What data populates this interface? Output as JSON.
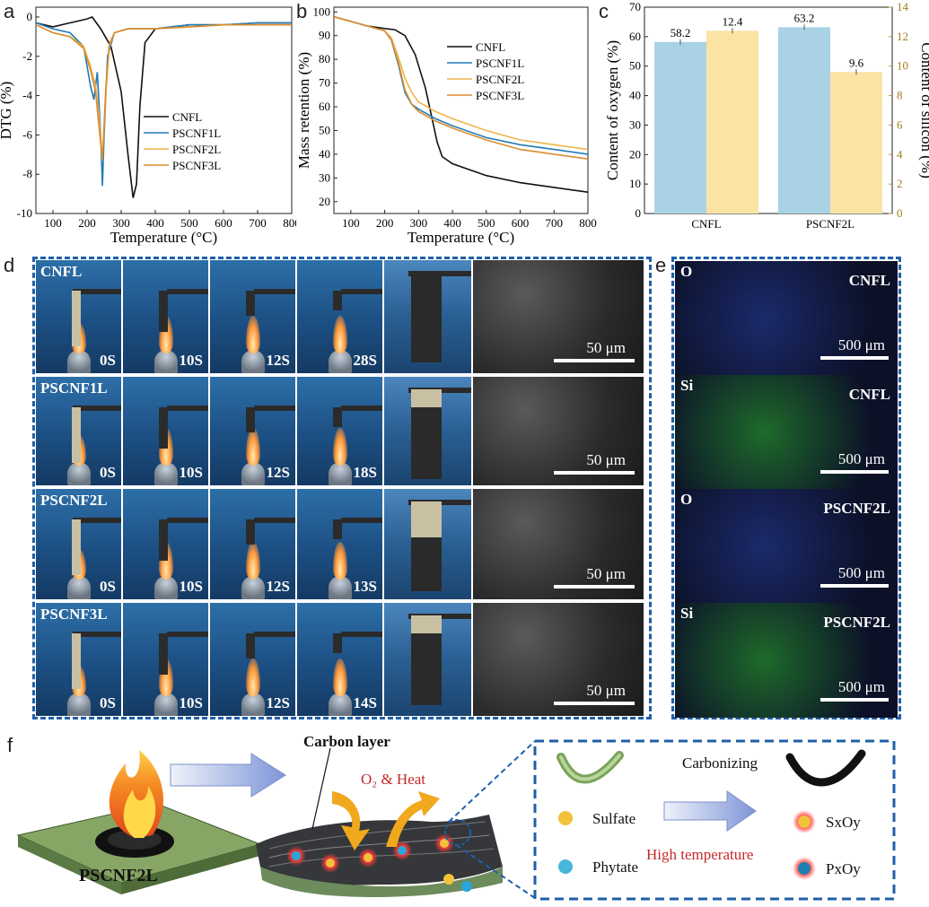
{
  "panel_labels": {
    "a": "a",
    "b": "b",
    "c": "c",
    "d": "d",
    "e": "e",
    "f": "f"
  },
  "chart_data": [
    {
      "type": "line",
      "panel": "a",
      "xlabel": "Temperature (°C)",
      "ylabel": "DTG (%)",
      "xlim": [
        50,
        800
      ],
      "ylim": [
        -10,
        0.5
      ],
      "xticks": [
        100,
        200,
        300,
        400,
        500,
        600,
        700,
        800
      ],
      "yticks": [
        0,
        -2,
        -4,
        -6,
        -8,
        -10
      ],
      "legend": [
        "CNFL",
        "PSCNF1L",
        "PSCNF2L",
        "PSCNF3L"
      ],
      "series": [
        {
          "name": "CNFL",
          "color": "#111111",
          "x": [
            50,
            100,
            150,
            200,
            215,
            240,
            270,
            300,
            320,
            335,
            345,
            355,
            370,
            400,
            500,
            600,
            700,
            800
          ],
          "y": [
            -0.3,
            -0.5,
            -0.3,
            -0.1,
            0.0,
            -0.6,
            -1.5,
            -3.8,
            -7.0,
            -9.2,
            -8.5,
            -4.5,
            -1.3,
            -0.6,
            -0.4,
            -0.4,
            -0.3,
            -0.3
          ]
        },
        {
          "name": "PSCNF1L",
          "color": "#1f7bb8",
          "x": [
            50,
            100,
            150,
            190,
            210,
            220,
            230,
            240,
            245,
            250,
            260,
            280,
            320,
            400,
            500,
            600,
            700,
            800
          ],
          "y": [
            -0.3,
            -0.6,
            -0.8,
            -1.5,
            -3.5,
            -4.2,
            -2.8,
            -6.0,
            -8.6,
            -6.0,
            -2.0,
            -0.8,
            -0.6,
            -0.6,
            -0.4,
            -0.4,
            -0.3,
            -0.3
          ]
        },
        {
          "name": "PSCNF2L",
          "color": "#f0b44a",
          "x": [
            50,
            100,
            150,
            190,
            210,
            225,
            235,
            245,
            255,
            265,
            280,
            320,
            400,
            500,
            600,
            700,
            800
          ],
          "y": [
            -0.4,
            -0.8,
            -1.0,
            -1.5,
            -2.5,
            -3.5,
            -5.0,
            -7.2,
            -4.0,
            -1.5,
            -0.8,
            -0.6,
            -0.6,
            -0.5,
            -0.4,
            -0.4,
            -0.4
          ]
        },
        {
          "name": "PSCNF3L",
          "color": "#d98c2e",
          "x": [
            50,
            100,
            150,
            190,
            210,
            225,
            235,
            245,
            255,
            265,
            280,
            320,
            400,
            500,
            600,
            700,
            800
          ],
          "y": [
            -0.4,
            -0.8,
            -1.0,
            -1.6,
            -2.7,
            -3.8,
            -5.6,
            -7.3,
            -3.6,
            -1.4,
            -0.8,
            -0.6,
            -0.6,
            -0.5,
            -0.4,
            -0.4,
            -0.4
          ]
        }
      ]
    },
    {
      "type": "line",
      "panel": "b",
      "xlabel": "Temperature (°C)",
      "ylabel": "Mass retention (%)",
      "xlim": [
        50,
        800
      ],
      "ylim": [
        15,
        102
      ],
      "xticks": [
        100,
        200,
        300,
        400,
        500,
        600,
        700,
        800
      ],
      "yticks": [
        100,
        90,
        80,
        70,
        60,
        50,
        40,
        30,
        20
      ],
      "legend": [
        "CNFL",
        "PSCNF1L",
        "PSCNF2L",
        "PSCNF3L"
      ],
      "series": [
        {
          "name": "CNFL",
          "color": "#111111",
          "x": [
            50,
            100,
            150,
            200,
            230,
            260,
            290,
            320,
            340,
            355,
            370,
            400,
            500,
            600,
            700,
            800
          ],
          "y": [
            98,
            96,
            94,
            93,
            92.5,
            90,
            82,
            68,
            55,
            45,
            39,
            36,
            31,
            28,
            26,
            24
          ]
        },
        {
          "name": "PSCNF1L",
          "color": "#1f7bb8",
          "x": [
            50,
            100,
            150,
            200,
            220,
            240,
            260,
            280,
            300,
            350,
            400,
            500,
            600,
            700,
            800
          ],
          "y": [
            98,
            96,
            94,
            92,
            88,
            78,
            66,
            61,
            59,
            55,
            52,
            47,
            44,
            42,
            40
          ]
        },
        {
          "name": "PSCNF2L",
          "color": "#f0b44a",
          "x": [
            50,
            100,
            150,
            200,
            220,
            240,
            260,
            280,
            300,
            350,
            400,
            500,
            600,
            700,
            800
          ],
          "y": [
            98,
            96,
            94,
            92,
            89,
            81,
            72,
            66,
            62,
            58,
            55,
            50,
            46,
            44,
            42
          ]
        },
        {
          "name": "PSCNF3L",
          "color": "#d98c2e",
          "x": [
            50,
            100,
            150,
            200,
            220,
            240,
            260,
            280,
            300,
            350,
            400,
            500,
            600,
            700,
            800
          ],
          "y": [
            98,
            96,
            94,
            92,
            88,
            79,
            67,
            61,
            58,
            54,
            51,
            46,
            42,
            40,
            38
          ]
        }
      ]
    },
    {
      "type": "bar",
      "panel": "c",
      "categories": [
        "CNFL",
        "PSCNF2L"
      ],
      "ylabel_left": "Content of oxygen (%)",
      "ylabel_right": "Content of silicon (%)",
      "ylim_left": [
        0,
        70
      ],
      "ylim_right": [
        0,
        14
      ],
      "yticks_left": [
        0,
        10,
        20,
        30,
        40,
        50,
        60,
        70
      ],
      "yticks_right": [
        0,
        2,
        4,
        6,
        8,
        10,
        12,
        14
      ],
      "series": [
        {
          "name": "oxygen",
          "axis": "left",
          "color": "#a9d3e4",
          "values": [
            58.2,
            63.2
          ],
          "labels": [
            "58.2",
            "63.2"
          ]
        },
        {
          "name": "silicon",
          "axis": "right",
          "color": "#fbe3a4",
          "values": [
            12.4,
            9.6
          ],
          "labels": [
            "12.4",
            "9.6"
          ]
        }
      ]
    }
  ],
  "panel_d": {
    "rows": [
      {
        "sample": "CNFL",
        "times": [
          "0S",
          "10S",
          "12S",
          "28S"
        ],
        "scale": "50 μm"
      },
      {
        "sample": "PSCNF1L",
        "times": [
          "0S",
          "10S",
          "12S",
          "18S"
        ],
        "scale": "50 μm"
      },
      {
        "sample": "PSCNF2L",
        "times": [
          "0S",
          "10S",
          "12S",
          "13S"
        ],
        "scale": "50 μm"
      },
      {
        "sample": "PSCNF3L",
        "times": [
          "0S",
          "10S",
          "12S",
          "14S"
        ],
        "scale": "50 μm"
      }
    ]
  },
  "panel_e": {
    "maps": [
      {
        "element": "O",
        "sample": "CNFL",
        "scale": "500 μm",
        "color": "#1b2a6b"
      },
      {
        "element": "Si",
        "sample": "CNFL",
        "scale": "500 μm",
        "color": "#1e6a2a"
      },
      {
        "element": "O",
        "sample": "PSCNF2L",
        "scale": "500 μm",
        "color": "#1b2a6b"
      },
      {
        "element": "Si",
        "sample": "PSCNF2L",
        "scale": "500 μm",
        "color": "#1e6a2a"
      }
    ]
  },
  "panel_f": {
    "sample_label": "PSCNF2L",
    "carbon_layer": "Carbon layer",
    "heat_label": "O₂ & Heat",
    "sulfate": "Sulfate",
    "phytate": "Phytate",
    "carbonizing": "Carbonizing",
    "high_temp": "High temperature",
    "sxoy": "SxOy",
    "pxoy": "PxOy"
  }
}
